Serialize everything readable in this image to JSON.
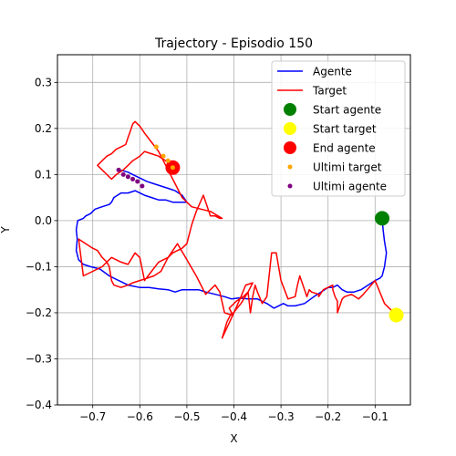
{
  "chart_data": {
    "type": "line",
    "title": "Trajectory - Episodio 150",
    "xlabel": "X",
    "ylabel": "Y",
    "xlim": [
      -0.775,
      -0.025
    ],
    "ylim": [
      -0.4,
      0.36
    ],
    "xticks": [
      -0.7,
      -0.6,
      -0.5,
      -0.4,
      -0.3,
      -0.2,
      -0.1
    ],
    "xtick_labels": [
      "−0.7",
      "−0.6",
      "−0.5",
      "−0.4",
      "−0.3",
      "−0.2",
      "−0.1"
    ],
    "yticks": [
      -0.4,
      -0.3,
      -0.2,
      -0.1,
      0.0,
      0.1,
      0.2,
      0.3
    ],
    "ytick_labels": [
      "−0.4",
      "−0.3",
      "−0.2",
      "−0.1",
      "0.0",
      "0.1",
      "0.2",
      "0.3"
    ],
    "grid": true,
    "legend_position": "top-right",
    "series": [
      {
        "name": "Agente",
        "kind": "line",
        "color": "#0000ff",
        "x": [
          -0.085,
          -0.083,
          -0.08,
          -0.076,
          -0.08,
          -0.085,
          -0.09,
          -0.1,
          -0.115,
          -0.13,
          -0.145,
          -0.16,
          -0.17,
          -0.18,
          -0.19,
          -0.2,
          -0.215,
          -0.23,
          -0.25,
          -0.27,
          -0.285,
          -0.295,
          -0.305,
          -0.315,
          -0.33,
          -0.35,
          -0.37,
          -0.39,
          -0.405,
          -0.42,
          -0.44,
          -0.46,
          -0.475,
          -0.49,
          -0.51,
          -0.525,
          -0.54,
          -0.56,
          -0.58,
          -0.6,
          -0.625,
          -0.645,
          -0.665,
          -0.685,
          -0.705,
          -0.72,
          -0.73,
          -0.735,
          -0.733,
          -0.735,
          -0.732,
          -0.72,
          -0.715,
          -0.705,
          -0.695,
          -0.68,
          -0.665,
          -0.66,
          -0.655,
          -0.64,
          -0.625,
          -0.61,
          -0.6,
          -0.59,
          -0.575,
          -0.56,
          -0.545,
          -0.53,
          -0.515,
          -0.5,
          -0.51,
          -0.525,
          -0.54,
          -0.555,
          -0.57,
          -0.585,
          -0.595,
          -0.605,
          -0.615,
          -0.625,
          -0.635,
          -0.645
        ],
        "y": [
          0.005,
          -0.02,
          -0.045,
          -0.07,
          -0.1,
          -0.12,
          -0.125,
          -0.13,
          -0.14,
          -0.15,
          -0.155,
          -0.155,
          -0.15,
          -0.14,
          -0.145,
          -0.145,
          -0.155,
          -0.165,
          -0.18,
          -0.185,
          -0.185,
          -0.18,
          -0.185,
          -0.19,
          -0.18,
          -0.17,
          -0.17,
          -0.168,
          -0.17,
          -0.165,
          -0.16,
          -0.155,
          -0.15,
          -0.15,
          -0.15,
          -0.155,
          -0.15,
          -0.148,
          -0.145,
          -0.145,
          -0.14,
          -0.13,
          -0.12,
          -0.105,
          -0.1,
          -0.095,
          -0.085,
          -0.065,
          -0.04,
          -0.02,
          0.0,
          0.005,
          0.01,
          0.015,
          0.025,
          0.03,
          0.035,
          0.04,
          0.05,
          0.06,
          0.06,
          0.065,
          0.06,
          0.055,
          0.05,
          0.045,
          0.045,
          0.04,
          0.04,
          0.04,
          0.055,
          0.065,
          0.07,
          0.075,
          0.08,
          0.085,
          0.09,
          0.095,
          0.1,
          0.105,
          0.108,
          0.11
        ]
      },
      {
        "name": "Target",
        "kind": "line",
        "color": "#ff0000",
        "x": [
          -0.055,
          -0.08,
          -0.1,
          -0.125,
          -0.135,
          -0.15,
          -0.165,
          -0.17,
          -0.175,
          -0.18,
          -0.18,
          -0.185,
          -0.19,
          -0.19,
          -0.21,
          -0.22,
          -0.22,
          -0.235,
          -0.24,
          -0.245,
          -0.26,
          -0.265,
          -0.27,
          -0.285,
          -0.3,
          -0.31,
          -0.32,
          -0.33,
          -0.34,
          -0.35,
          -0.355,
          -0.36,
          -0.365,
          -0.37,
          -0.38,
          -0.395,
          -0.41,
          -0.405,
          -0.415,
          -0.425,
          -0.4,
          -0.385,
          -0.375,
          -0.36,
          -0.37,
          -0.385,
          -0.405,
          -0.42,
          -0.43,
          -0.44,
          -0.46,
          -0.48,
          -0.5,
          -0.52,
          -0.54,
          -0.56,
          -0.575,
          -0.59,
          -0.6,
          -0.61,
          -0.625,
          -0.64,
          -0.66,
          -0.68,
          -0.7,
          -0.72,
          -0.73,
          -0.715,
          -0.7,
          -0.69,
          -0.68,
          -0.67,
          -0.665,
          -0.66,
          -0.655,
          -0.64,
          -0.625,
          -0.615,
          -0.6,
          -0.585,
          -0.57,
          -0.555,
          -0.55,
          -0.54,
          -0.53,
          -0.52,
          -0.51,
          -0.5,
          -0.49,
          -0.48,
          -0.465,
          -0.45,
          -0.44,
          -0.43,
          -0.425,
          -0.45,
          -0.47,
          -0.49,
          -0.5,
          -0.51,
          -0.52,
          -0.53,
          -0.54,
          -0.55,
          -0.56,
          -0.575,
          -0.59,
          -0.6,
          -0.61,
          -0.615,
          -0.62,
          -0.625,
          -0.63,
          -0.64,
          -0.65,
          -0.66,
          -0.67,
          -0.68,
          -0.69,
          -0.68,
          -0.67,
          -0.66,
          -0.65,
          -0.635,
          -0.625,
          -0.615,
          -0.6,
          -0.59,
          -0.575,
          -0.56,
          -0.545,
          -0.53
        ],
        "y": [
          -0.205,
          -0.18,
          -0.13,
          -0.16,
          -0.17,
          -0.16,
          -0.165,
          -0.17,
          -0.185,
          -0.2,
          -0.175,
          -0.165,
          -0.15,
          -0.14,
          -0.15,
          -0.165,
          -0.16,
          -0.155,
          -0.15,
          -0.165,
          -0.12,
          -0.14,
          -0.165,
          -0.17,
          -0.13,
          -0.07,
          -0.07,
          -0.165,
          -0.18,
          -0.155,
          -0.14,
          -0.165,
          -0.2,
          -0.155,
          -0.165,
          -0.175,
          -0.19,
          -0.2,
          -0.22,
          -0.255,
          -0.2,
          -0.165,
          -0.14,
          -0.135,
          -0.155,
          -0.18,
          -0.205,
          -0.2,
          -0.155,
          -0.14,
          -0.16,
          -0.12,
          -0.085,
          -0.05,
          -0.08,
          -0.09,
          -0.11,
          -0.13,
          -0.08,
          -0.07,
          -0.095,
          -0.09,
          -0.08,
          -0.1,
          -0.11,
          -0.12,
          -0.04,
          -0.05,
          -0.06,
          -0.065,
          -0.08,
          -0.09,
          -0.1,
          -0.13,
          -0.14,
          -0.145,
          -0.14,
          -0.135,
          -0.13,
          -0.125,
          -0.12,
          -0.11,
          -0.1,
          -0.08,
          -0.07,
          -0.065,
          -0.06,
          -0.05,
          -0.01,
          0.02,
          0.055,
          0.01,
          0.01,
          0.005,
          0.005,
          0.02,
          0.025,
          0.03,
          0.04,
          0.05,
          0.07,
          0.09,
          0.11,
          0.13,
          0.15,
          0.17,
          0.19,
          0.205,
          0.215,
          0.21,
          0.195,
          0.18,
          0.165,
          0.16,
          0.155,
          0.145,
          0.14,
          0.13,
          0.12,
          0.11,
          0.1,
          0.09,
          0.1,
          0.11,
          0.12,
          0.13,
          0.14,
          0.15,
          0.145,
          0.14,
          0.13,
          0.115
        ]
      },
      {
        "name": "Start agente",
        "kind": "scatter",
        "color": "#008000",
        "x": [
          -0.085
        ],
        "y": [
          0.005
        ]
      },
      {
        "name": "Start target",
        "kind": "scatter",
        "color": "#ffff00",
        "x": [
          -0.055
        ],
        "y": [
          -0.205
        ]
      },
      {
        "name": "End agente",
        "kind": "scatter",
        "color": "#ff0000",
        "x": [
          -0.53
        ],
        "y": [
          0.115
        ]
      },
      {
        "name": "Ultimi target",
        "kind": "scatter",
        "color": "#ffa500",
        "x": [
          -0.565,
          -0.55,
          -0.54,
          -0.53
        ],
        "y": [
          0.16,
          0.14,
          0.13,
          0.115
        ]
      },
      {
        "name": "Ultimi agente",
        "kind": "scatter",
        "color": "#800080",
        "x": [
          -0.645,
          -0.635,
          -0.625,
          -0.615,
          -0.605,
          -0.595
        ],
        "y": [
          0.11,
          0.1,
          0.095,
          0.09,
          0.085,
          0.075
        ]
      }
    ]
  }
}
